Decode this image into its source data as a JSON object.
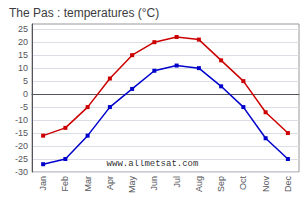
{
  "chart_data": {
    "type": "line",
    "title": "The Pas : temperatures (°C)",
    "categories": [
      "Jan",
      "Feb",
      "Mar",
      "Apr",
      "May",
      "Jun",
      "Jul",
      "Aug",
      "Sep",
      "Oct",
      "Nov",
      "Dec"
    ],
    "series": [
      {
        "color": "#cc0000",
        "marker": "square",
        "values": [
          -16,
          -13,
          -5,
          6,
          15,
          20,
          22,
          21,
          13,
          5,
          -7,
          -15
        ]
      },
      {
        "color": "#0000cc",
        "marker": "square",
        "values": [
          -27,
          -25,
          -16,
          -5,
          2,
          9,
          11,
          10,
          3,
          -5,
          -17,
          -25
        ]
      }
    ],
    "ylim": [
      -30,
      27
    ],
    "yticks": [
      -30,
      -25,
      -20,
      -15,
      -10,
      -5,
      0,
      5,
      10,
      15,
      20,
      25
    ],
    "grid": true,
    "annotations": [
      "www.allmetsat.com"
    ]
  }
}
